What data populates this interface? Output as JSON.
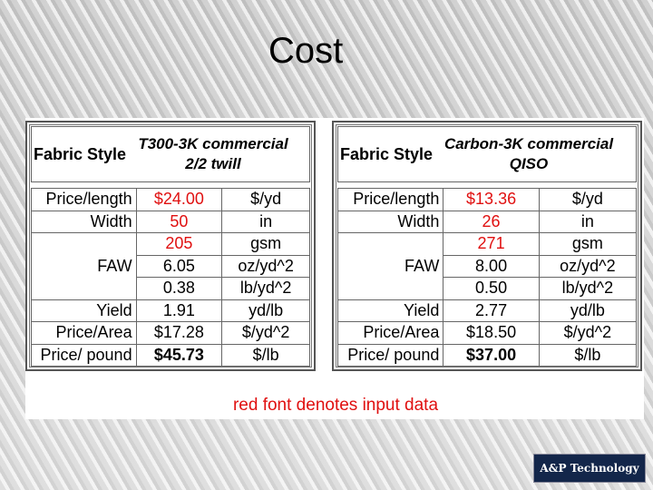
{
  "title": "Cost",
  "tables": [
    {
      "header": {
        "label": "Fabric Style",
        "title": [
          "T300-3K commercial",
          "2/2 twill"
        ]
      },
      "rows": [
        {
          "label": "Price/length",
          "entries": [
            {
              "value": "$24.00",
              "unit": "$/yd",
              "input": true
            }
          ]
        },
        {
          "label": "Width",
          "entries": [
            {
              "value": "50",
              "unit": "in",
              "input": true
            }
          ]
        },
        {
          "label": "FAW",
          "entries": [
            {
              "value": "205",
              "unit": "gsm",
              "input": true
            },
            {
              "value": "6.05",
              "unit": "oz/yd^2"
            },
            {
              "value": "0.38",
              "unit": "lb/yd^2"
            }
          ]
        },
        {
          "label": "Yield",
          "entries": [
            {
              "value": "1.91",
              "unit": "yd/lb"
            }
          ]
        },
        {
          "label": "Price/Area",
          "entries": [
            {
              "value": "$17.28",
              "unit": "$/yd^2"
            }
          ]
        },
        {
          "label": "Price/ pound",
          "entries": [
            {
              "value": "$45.73",
              "unit": "$/lb",
              "bold": true
            }
          ]
        }
      ]
    },
    {
      "header": {
        "label": "Fabric Style",
        "title": [
          "Carbon-3K commercial",
          "QISO"
        ]
      },
      "rows": [
        {
          "label": "Price/length",
          "entries": [
            {
              "value": "$13.36",
              "unit": "$/yd",
              "input": true
            }
          ]
        },
        {
          "label": "Width",
          "entries": [
            {
              "value": "26",
              "unit": "in",
              "input": true
            }
          ]
        },
        {
          "label": "FAW",
          "entries": [
            {
              "value": "271",
              "unit": "gsm",
              "input": true
            },
            {
              "value": "8.00",
              "unit": "oz/yd^2"
            },
            {
              "value": "0.50",
              "unit": "lb/yd^2"
            }
          ]
        },
        {
          "label": "Yield",
          "entries": [
            {
              "value": "2.77",
              "unit": "yd/lb"
            }
          ]
        },
        {
          "label": "Price/Area",
          "entries": [
            {
              "value": "$18.50",
              "unit": "$/yd^2"
            }
          ]
        },
        {
          "label": "Price/ pound",
          "entries": [
            {
              "value": "$37.00",
              "unit": "$/lb",
              "bold": true
            }
          ]
        }
      ]
    }
  ],
  "note": "red font denotes input data",
  "logo": "A&P Technology"
}
